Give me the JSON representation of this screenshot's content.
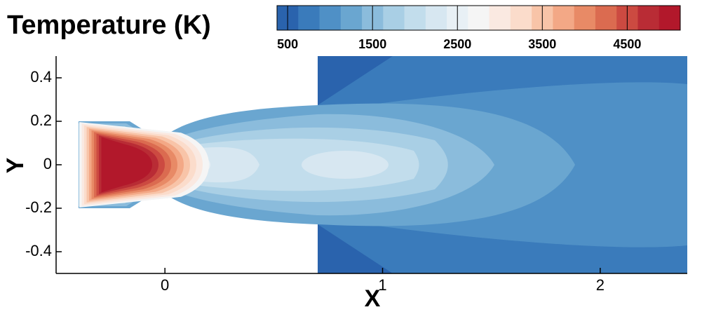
{
  "chart_data": {
    "type": "contour",
    "title": "Temperature (K)",
    "xlabel": "X",
    "ylabel": "Y",
    "xlim": [
      -0.5,
      2.4
    ],
    "ylim": [
      -0.5,
      0.5
    ],
    "xticks": [
      0,
      1,
      2
    ],
    "yticks": [
      0.4,
      0.2,
      0,
      -0.2,
      -0.4
    ],
    "colorbar": {
      "lim": [
        375,
        5125
      ],
      "ticks": [
        500,
        1500,
        2500,
        3500,
        4500
      ],
      "colors": [
        "#2a63ad",
        "#3a7bbb",
        "#4f90c6",
        "#6aa6d0",
        "#8bbcdc",
        "#a9cfe5",
        "#c2ddec",
        "#d7e7f1",
        "#e8f0f5",
        "#f5f5f5",
        "#fae9e1",
        "#fbdccb",
        "#f8c4a8",
        "#f3a886",
        "#e88a66",
        "#db6b50",
        "#cc4a41",
        "#b92c35",
        "#b2182b"
      ]
    }
  }
}
